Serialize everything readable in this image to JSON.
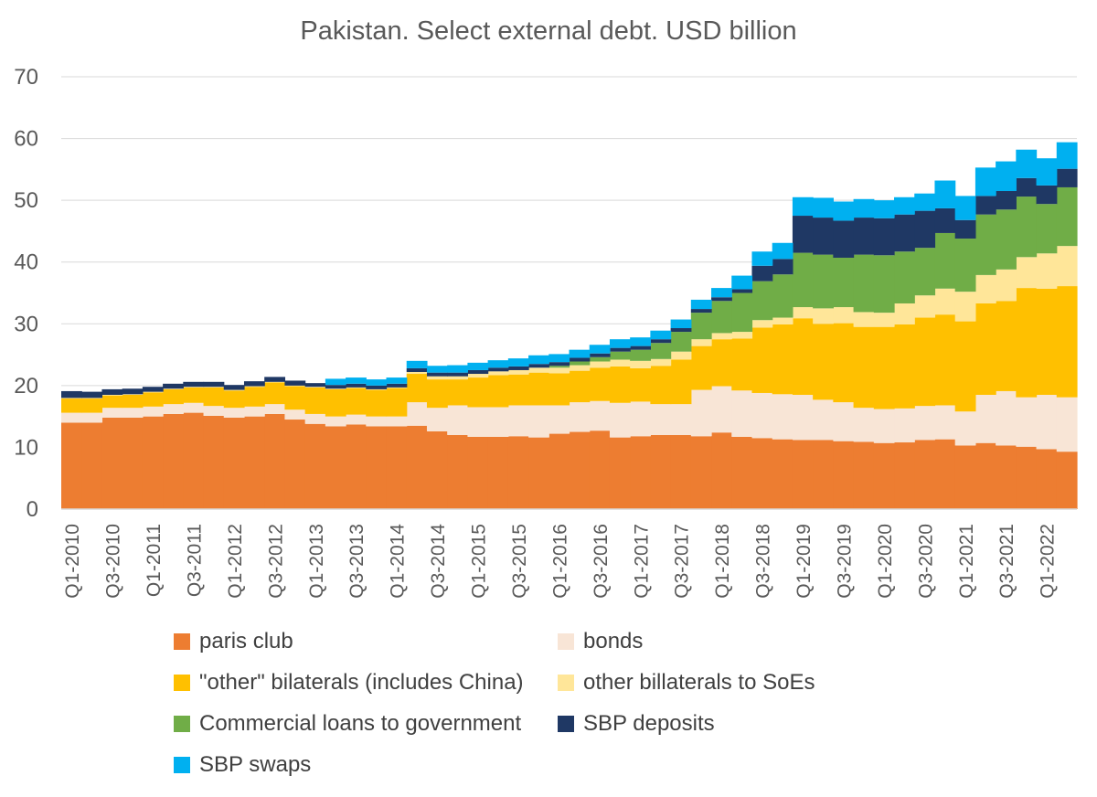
{
  "chart_data": {
    "type": "area",
    "stacked": true,
    "title": "Pakistan.  Select external debt.   USD billion",
    "xlabel": "",
    "ylabel": "",
    "ylim": [
      0,
      70
    ],
    "yticks": [
      0,
      10,
      20,
      30,
      40,
      50,
      60,
      70
    ],
    "grid": true,
    "legend_position": "bottom",
    "x_tick_labels": [
      "Q1-2010",
      "Q3-2010",
      "Q1-2011",
      "Q3-2011",
      "Q1-2012",
      "Q3-2012",
      "Q1-2013",
      "Q3-2013",
      "Q1-2014",
      "Q3-2014",
      "Q1-2015",
      "Q3-2015",
      "Q1-2016",
      "Q3-2016",
      "Q1-2017",
      "Q3-2017",
      "Q1-2018",
      "Q3-2018",
      "Q1-2019",
      "Q3-2019",
      "Q1-2020",
      "Q3-2020",
      "Q1-2021",
      "Q3-2021",
      "Q1-2022"
    ],
    "categories": [
      "Q1-2010",
      "Q2-2010",
      "Q3-2010",
      "Q4-2010",
      "Q1-2011",
      "Q2-2011",
      "Q3-2011",
      "Q4-2011",
      "Q1-2012",
      "Q2-2012",
      "Q3-2012",
      "Q4-2012",
      "Q1-2013",
      "Q2-2013",
      "Q3-2013",
      "Q4-2013",
      "Q1-2014",
      "Q2-2014",
      "Q3-2014",
      "Q4-2014",
      "Q1-2015",
      "Q2-2015",
      "Q3-2015",
      "Q4-2015",
      "Q1-2016",
      "Q2-2016",
      "Q3-2016",
      "Q4-2016",
      "Q1-2017",
      "Q2-2017",
      "Q3-2017",
      "Q4-2017",
      "Q1-2018",
      "Q2-2018",
      "Q3-2018",
      "Q4-2018",
      "Q1-2019",
      "Q2-2019",
      "Q3-2019",
      "Q4-2019",
      "Q1-2020",
      "Q2-2020",
      "Q3-2020",
      "Q4-2020",
      "Q1-2021",
      "Q2-2021",
      "Q3-2021",
      "Q4-2021",
      "Q1-2022",
      "Q2-2022"
    ],
    "series": [
      {
        "name": "paris club",
        "color": "#ED7D31",
        "values": [
          14.0,
          14.0,
          14.8,
          14.8,
          15.0,
          15.4,
          15.6,
          15.1,
          14.8,
          15.0,
          15.4,
          14.5,
          13.8,
          13.4,
          13.7,
          13.4,
          13.4,
          13.5,
          12.6,
          12.0,
          11.7,
          11.7,
          11.8,
          11.6,
          12.2,
          12.5,
          12.7,
          11.6,
          11.8,
          12.0,
          12.0,
          11.8,
          12.4,
          11.7,
          11.5,
          11.3,
          11.2,
          11.2,
          11.0,
          10.9,
          10.7,
          10.8,
          11.2,
          11.3,
          10.3,
          10.7,
          10.3,
          10.1,
          9.7,
          9.3
        ]
      },
      {
        "name": "bonds",
        "color": "#F8E5D6",
        "values": [
          1.6,
          1.6,
          1.6,
          1.6,
          1.6,
          1.6,
          1.6,
          1.6,
          1.6,
          1.6,
          1.6,
          1.6,
          1.6,
          1.6,
          1.6,
          1.6,
          1.6,
          3.8,
          3.8,
          4.8,
          4.8,
          4.8,
          5.0,
          5.2,
          4.6,
          4.8,
          4.8,
          5.6,
          5.6,
          5.0,
          5.0,
          7.5,
          7.5,
          7.5,
          7.3,
          7.3,
          7.3,
          6.5,
          6.3,
          5.5,
          5.5,
          5.5,
          5.5,
          5.5,
          5.5,
          7.8,
          8.8,
          8.0,
          8.8,
          8.8
        ]
      },
      {
        "name": "\"other\" bilaterals (includes China)",
        "color": "#FFC000",
        "values": [
          2.3,
          2.3,
          2.0,
          2.1,
          2.3,
          2.4,
          2.5,
          3.0,
          2.8,
          3.2,
          3.5,
          3.8,
          4.3,
          4.4,
          4.3,
          4.3,
          4.6,
          4.6,
          4.6,
          4.2,
          4.8,
          5.2,
          5.0,
          5.3,
          5.2,
          5.1,
          5.4,
          5.9,
          5.4,
          6.2,
          7.2,
          7.1,
          7.6,
          8.4,
          10.6,
          11.3,
          12.4,
          12.3,
          12.8,
          13.1,
          13.3,
          13.6,
          14.3,
          14.7,
          14.6,
          14.8,
          14.6,
          17.7,
          17.2,
          18.0
        ]
      },
      {
        "name": "other billaterals to SoEs",
        "color": "#FFE699",
        "values": [
          0.1,
          0.1,
          0.1,
          0.1,
          0.1,
          0.1,
          0.1,
          0.1,
          0.1,
          0.1,
          0.1,
          0.1,
          0.1,
          0.1,
          0.1,
          0.1,
          0.1,
          0.3,
          0.5,
          0.5,
          0.6,
          0.6,
          0.7,
          0.8,
          0.9,
          0.9,
          1.0,
          1.1,
          1.2,
          1.1,
          1.3,
          1.1,
          1.0,
          1.1,
          1.2,
          1.1,
          1.8,
          2.5,
          2.6,
          2.4,
          2.3,
          3.4,
          3.6,
          4.2,
          4.8,
          4.6,
          5.1,
          5.0,
          5.7,
          6.5
        ]
      },
      {
        "name": "Commercial loans to government",
        "color": "#70AD47",
        "values": [
          0,
          0,
          0,
          0,
          0,
          0,
          0,
          0,
          0,
          0,
          0,
          0,
          0,
          0,
          0,
          0,
          0,
          0,
          0,
          0,
          0,
          0,
          0,
          0,
          0.3,
          0.6,
          0.7,
          1.3,
          1.8,
          2.6,
          3.2,
          4.3,
          5.2,
          6.3,
          6.3,
          7.0,
          8.8,
          8.7,
          8.0,
          9.3,
          9.3,
          8.4,
          7.7,
          9.0,
          8.6,
          9.8,
          9.7,
          9.8,
          8.0,
          9.5
        ]
      },
      {
        "name": "SBP deposits",
        "color": "#1F3864",
        "values": [
          1.1,
          1.0,
          0.9,
          0.9,
          0.8,
          0.8,
          0.8,
          0.8,
          0.8,
          0.8,
          0.8,
          0.8,
          0.6,
          0.6,
          0.6,
          0.6,
          0.6,
          0.6,
          0.6,
          0.6,
          0.6,
          0.6,
          0.6,
          0.6,
          0.6,
          0.6,
          0.6,
          0.6,
          0.6,
          0.6,
          0.6,
          0.6,
          0.6,
          0.6,
          2.5,
          2.5,
          6.0,
          6.0,
          6.0,
          6.0,
          6.0,
          6.0,
          6.0,
          4.0,
          3.0,
          3.0,
          3.0,
          3.0,
          3.0,
          3.0
        ]
      },
      {
        "name": "SBP swaps",
        "color": "#00B0F0",
        "values": [
          0,
          0,
          0,
          0,
          0,
          0,
          0,
          0,
          0,
          0,
          0,
          0,
          0,
          1.0,
          1.0,
          1.0,
          1.0,
          1.2,
          1.1,
          1.2,
          1.2,
          1.2,
          1.3,
          1.4,
          1.3,
          1.3,
          1.4,
          1.4,
          1.4,
          1.4,
          1.4,
          1.5,
          1.5,
          2.2,
          2.3,
          2.6,
          3.0,
          3.2,
          3.1,
          3.0,
          2.9,
          2.8,
          2.8,
          4.5,
          3.9,
          4.6,
          4.8,
          4.6,
          4.4,
          4.3
        ]
      }
    ]
  }
}
